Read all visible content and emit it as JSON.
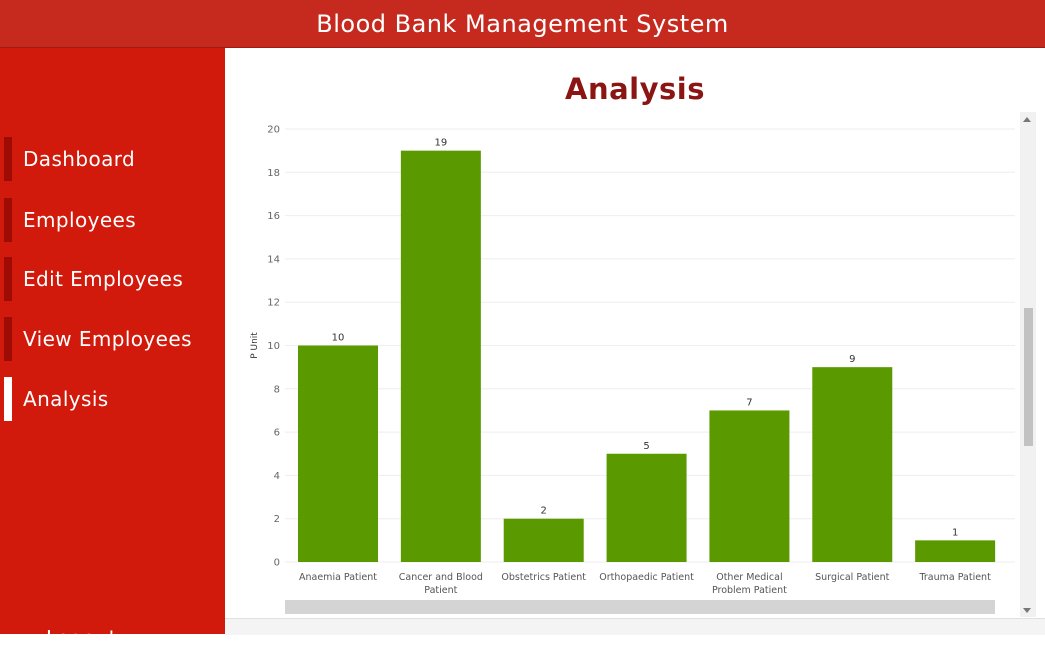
{
  "header": {
    "title": "Blood Bank Management System"
  },
  "sidebar": {
    "items": [
      {
        "label": "Dashboard",
        "active": false
      },
      {
        "label": "Employees",
        "active": false
      },
      {
        "label": "Edit Employees",
        "active": false
      },
      {
        "label": "View Employees",
        "active": false
      },
      {
        "label": "Analysis",
        "active": true
      }
    ],
    "logout_label": "Logout"
  },
  "main": {
    "title": "Analysis"
  },
  "colors": {
    "header": "#c62a1f",
    "sidebar": "#d11a0b",
    "bar": "#5a9a00",
    "title": "#8b1513"
  },
  "chart_data": {
    "type": "bar",
    "title": "",
    "xlabel": "",
    "ylabel": "P Unit",
    "categories": [
      [
        "Anaemia Patient"
      ],
      [
        "Cancer and Blood",
        "Patient"
      ],
      [
        "Obstetrics Patient"
      ],
      [
        "Orthopaedic Patient"
      ],
      [
        "Other Medical",
        "Problem Patient"
      ],
      [
        "Surgical Patient"
      ],
      [
        "Trauma Patient"
      ]
    ],
    "values": [
      10,
      19,
      2,
      5,
      7,
      9,
      1
    ],
    "ylim": [
      0,
      20
    ],
    "yticks": [
      0,
      2,
      4,
      6,
      8,
      10,
      12,
      14,
      16,
      18,
      20
    ],
    "grid": true,
    "data_labels": true
  }
}
